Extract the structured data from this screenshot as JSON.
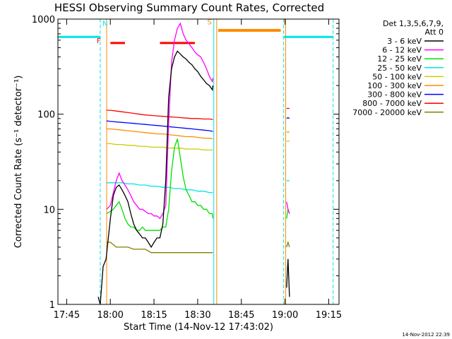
{
  "chart_data": {
    "type": "line",
    "title": "HESSI Observing Summary Count Rates, Corrected",
    "xlabel": "Start Time (14-Nov-12 17:43:02)",
    "ylabel": "Corrected Count Rate (s⁻¹ detector⁻¹)",
    "yscale": "log",
    "ylim": [
      1,
      1000
    ],
    "xlim_minutes": [
      -1.033,
      95.5
    ],
    "x_unit": "minutes after 17:43:02",
    "x_tick_labels": [
      "17:45",
      "18:00",
      "18:15",
      "18:30",
      "18:45",
      "19:00",
      "19:15"
    ],
    "x_tick_values": [
      1.967,
      16.967,
      31.967,
      46.967,
      61.967,
      76.967,
      91.967
    ],
    "y_tick_labels": [
      "1",
      "10",
      "100",
      "1000"
    ],
    "y_tick_values": [
      1,
      10,
      100,
      1000
    ],
    "timestamp": "14-Nov-2012 22:39",
    "legend": {
      "header_line1": "Det 1,3,5,6,7,9,",
      "header_line2": "Att 0",
      "entries": [
        {
          "label": "3 - 6 keV",
          "color": "#000000"
        },
        {
          "label": "6 - 12 keV",
          "color": "#ff00ff"
        },
        {
          "label": "12 - 25 keV",
          "color": "#00e000"
        },
        {
          "label": "25 - 50 keV",
          "color": "#00e5e5"
        },
        {
          "label": "50 - 100 keV",
          "color": "#cccc00"
        },
        {
          "label": "100 - 300 keV",
          "color": "#ff8c00"
        },
        {
          "label": "300 - 800 keV",
          "color": "#0000ff"
        },
        {
          "label": "800 - 7000 keV",
          "color": "#ff0000"
        },
        {
          "label": "7000 - 20000 keV",
          "color": "#808000"
        }
      ]
    },
    "series": [
      {
        "name": "3 - 6 keV",
        "color": "#000000",
        "x": [
          12.8,
          13.5,
          14.5,
          15.5,
          17.0,
          18.0,
          19.0,
          20.0,
          21.0,
          22.0,
          23.0,
          24.0,
          25.0,
          26.0,
          27.0,
          28.0,
          29.0,
          30.0,
          31.0,
          32.0,
          33.0,
          34.0,
          35.0,
          36.0,
          37.0,
          38.0,
          39.0,
          40.0,
          41.0,
          42.0,
          43.0,
          44.0,
          45.0,
          46.0,
          47.0,
          48.0,
          49.0,
          50.0,
          51.0,
          52.0,
          52.2
        ],
        "y": [
          1.2,
          1.0,
          2.5,
          3.0,
          8.0,
          14.0,
          17.0,
          18.0,
          16.0,
          14.0,
          12.0,
          9.0,
          7.0,
          6.0,
          5.5,
          5.0,
          5.0,
          4.5,
          4.0,
          4.5,
          5.0,
          5.0,
          7.0,
          20.0,
          150,
          300,
          400,
          460,
          430,
          400,
          380,
          350,
          330,
          300,
          280,
          250,
          230,
          210,
          200,
          180,
          200
        ],
        "xb": [
          77.5,
          78.0,
          78.5
        ],
        "yb": [
          1.5,
          3.0,
          1.2
        ]
      },
      {
        "name": "6 - 12 keV",
        "color": "#ff00ff",
        "x": [
          15.7,
          17.0,
          18.0,
          19.0,
          20.0,
          21.0,
          22.0,
          23.0,
          24.0,
          25.0,
          26.0,
          27.0,
          28.0,
          29.0,
          30.0,
          31.0,
          32.0,
          33.0,
          34.0,
          35.0,
          36.0,
          37.0,
          38.0,
          39.0,
          40.0,
          41.0,
          42.0,
          43.0,
          44.0,
          45.0,
          46.0,
          47.0,
          48.0,
          49.0,
          50.0,
          51.0,
          52.0,
          52.2
        ],
        "y": [
          10.0,
          11.0,
          15.0,
          20.0,
          24.0,
          20.0,
          18.0,
          16.0,
          14.0,
          12.0,
          11.0,
          10.0,
          10.0,
          9.5,
          9.0,
          9.0,
          8.5,
          8.5,
          8.0,
          9.0,
          11.0,
          80,
          350,
          600,
          800,
          900,
          700,
          600,
          550,
          500,
          450,
          420,
          400,
          350,
          300,
          250,
          220,
          240
        ],
        "xb": [
          77.5,
          78.0,
          78.5
        ],
        "yb": [
          12.0,
          10.0,
          9.0
        ]
      },
      {
        "name": "12 - 25 keV",
        "color": "#00e000",
        "x": [
          15.7,
          17.0,
          18.0,
          19.0,
          20.0,
          21.0,
          22.0,
          23.0,
          24.0,
          25.0,
          26.0,
          27.0,
          28.0,
          29.0,
          30.0,
          31.0,
          32.0,
          33.0,
          34.0,
          35.0,
          36.0,
          37.0,
          38.0,
          39.0,
          40.0,
          41.0,
          42.0,
          43.0,
          44.0,
          45.0,
          46.0,
          47.0,
          48.0,
          49.0,
          50.0,
          51.0,
          52.0,
          52.2
        ],
        "y": [
          9.0,
          9.5,
          10.0,
          11.0,
          12.0,
          10.0,
          8.0,
          7.0,
          6.5,
          6.5,
          6.0,
          6.0,
          6.5,
          6.0,
          6.0,
          6.0,
          6.0,
          6.0,
          6.0,
          6.5,
          6.5,
          10.0,
          25.0,
          45.0,
          55.0,
          35.0,
          22.0,
          16.0,
          14.0,
          12.0,
          12.0,
          11.0,
          11.0,
          10.0,
          10.0,
          9.0,
          9.0,
          8.0
        ],
        "xb": [
          77.5,
          78.0,
          78.5
        ],
        "yb": [
          8.0,
          10.0,
          9.0
        ]
      },
      {
        "name": "25 - 50 keV",
        "color": "#00e5e5",
        "x": [
          15.7,
          17.0,
          19.0,
          21.0,
          23.0,
          25.0,
          27.0,
          29.0,
          31.0,
          33.0,
          35.0,
          37.0,
          39.0,
          41.0,
          43.0,
          45.0,
          47.0,
          49.0,
          51.0,
          52.2
        ],
        "y": [
          19.0,
          19.0,
          19.0,
          19.0,
          18.5,
          18.5,
          18.0,
          18.0,
          17.5,
          17.5,
          17.0,
          17.0,
          16.5,
          16.5,
          16.0,
          16.0,
          15.5,
          15.5,
          15.0,
          15.0
        ],
        "xb": [
          77.5,
          78.0,
          78.5
        ],
        "yb": [
          20.0,
          20.0,
          20.0
        ]
      },
      {
        "name": "50 - 100 keV",
        "color": "#cccc00",
        "x": [
          15.7,
          17.0,
          19.0,
          21.0,
          23.0,
          25.0,
          27.0,
          29.0,
          31.0,
          33.0,
          35.0,
          37.0,
          39.0,
          41.0,
          43.0,
          45.0,
          47.0,
          49.0,
          51.0,
          52.2
        ],
        "y": [
          49.0,
          49.0,
          48.0,
          48.0,
          47.0,
          47.0,
          46.0,
          46.0,
          45.0,
          45.0,
          45.0,
          44.0,
          44.0,
          44.0,
          43.0,
          43.0,
          43.0,
          42.0,
          42.0,
          42.0
        ],
        "xb": [
          77.5,
          78.0,
          78.5
        ],
        "yb": [
          52.0,
          52.0,
          52.0
        ]
      },
      {
        "name": "100 - 300 keV",
        "color": "#ff8c00",
        "x": [
          15.7,
          17.0,
          19.0,
          21.0,
          23.0,
          25.0,
          27.0,
          29.0,
          31.0,
          33.0,
          35.0,
          37.0,
          39.0,
          41.0,
          43.0,
          45.0,
          47.0,
          49.0,
          51.0,
          52.2
        ],
        "y": [
          70.0,
          70.0,
          69.0,
          68.0,
          67.0,
          66.0,
          65.0,
          64.0,
          63.0,
          62.0,
          62.0,
          61.0,
          60.0,
          59.0,
          58.0,
          58.0,
          57.0,
          56.0,
          56.0,
          55.0
        ],
        "xb": [
          77.5,
          78.0,
          78.5
        ],
        "yb": [
          65.0,
          65.0,
          65.0
        ]
      },
      {
        "name": "300 - 800 keV",
        "color": "#0000ff",
        "x": [
          15.7,
          17.0,
          19.0,
          21.0,
          23.0,
          25.0,
          27.0,
          29.0,
          31.0,
          33.0,
          35.0,
          37.0,
          39.0,
          41.0,
          43.0,
          45.0,
          47.0,
          49.0,
          51.0,
          52.2
        ],
        "y": [
          85.0,
          84.0,
          83.0,
          82.0,
          81.0,
          80.0,
          79.0,
          78.0,
          77.0,
          76.0,
          75.0,
          74.0,
          73.0,
          72.0,
          71.0,
          70.0,
          69.0,
          68.0,
          67.0,
          66.0
        ],
        "xb": [
          77.5,
          78.0,
          78.5
        ],
        "yb": [
          90.0,
          92.0,
          90.0
        ]
      },
      {
        "name": "800 - 7000 keV",
        "color": "#ff0000",
        "x": [
          15.7,
          17.0,
          19.0,
          21.0,
          23.0,
          25.0,
          27.0,
          29.0,
          31.0,
          33.0,
          35.0,
          37.0,
          39.0,
          41.0,
          43.0,
          45.0,
          47.0,
          49.0,
          51.0,
          52.2
        ],
        "y": [
          110,
          110,
          108,
          106,
          104,
          102,
          100,
          98,
          97,
          96,
          95,
          94,
          93,
          92,
          91,
          90,
          90,
          89,
          89,
          88
        ],
        "xb": [
          77.5,
          78.0,
          78.5
        ],
        "yb": [
          115,
          115,
          115
        ]
      },
      {
        "name": "7000 - 20000 keV",
        "color": "#808000",
        "x": [
          15.7,
          17.0,
          19.0,
          21.0,
          23.0,
          25.0,
          27.0,
          29.0,
          31.0,
          33.0,
          35.0,
          37.0,
          39.0,
          41.0,
          43.0,
          45.0,
          47.0,
          49.0,
          51.0,
          52.2
        ],
        "y": [
          4.5,
          4.5,
          4.0,
          4.0,
          4.0,
          3.8,
          3.8,
          3.8,
          3.5,
          3.5,
          3.5,
          3.5,
          3.5,
          3.5,
          3.5,
          3.5,
          3.5,
          3.5,
          3.5,
          3.5
        ],
        "xb": [
          77.5,
          78.0,
          78.5
        ],
        "yb": [
          4.0,
          4.5,
          4.0
        ]
      }
    ],
    "annotations": {
      "night_bars": [
        {
          "x0": -1.033,
          "x1": 13.5,
          "y": 650,
          "color": "#00e5e5",
          "label": ""
        },
        {
          "x0": 76.5,
          "x1": 93.5,
          "y": 650,
          "color": "#00e5e5",
          "label": ""
        }
      ],
      "saa_bar": {
        "x0": 54.0,
        "x1": 75.5,
        "y": 760,
        "color": "#ff8c00"
      },
      "flare_bars": [
        {
          "x0": 17.0,
          "x1": 22.0,
          "y": 560,
          "color": "#ff0000"
        },
        {
          "x0": 34.0,
          "x1": 46.0,
          "y": 560,
          "color": "#ff0000"
        }
      ],
      "flag_labels": [
        {
          "text": "N",
          "x": 15.2,
          "y": 850,
          "color": "#00e5e5"
        },
        {
          "text": "F",
          "x": 13.0,
          "y": 560,
          "color": "#ff0000"
        },
        {
          "text": "S",
          "x": 51.0,
          "y": 880,
          "color": "#ff8c00"
        }
      ],
      "vertical_lines": [
        {
          "x": 13.5,
          "color": "#00e5e5",
          "style": "dashed"
        },
        {
          "x": 52.5,
          "color": "#00e5e5",
          "style": "solid"
        },
        {
          "x": 53.5,
          "color": "#ff8c00",
          "style": "solid"
        },
        {
          "x": 15.7,
          "color": "#ff8c00",
          "style": "solid"
        },
        {
          "x": 76.5,
          "color": "#00e5e5",
          "style": "dashed"
        },
        {
          "x": 77.2,
          "color": "#ff8c00",
          "style": "solid"
        },
        {
          "x": 93.5,
          "color": "#00e5e5",
          "style": "dashed"
        }
      ]
    }
  }
}
